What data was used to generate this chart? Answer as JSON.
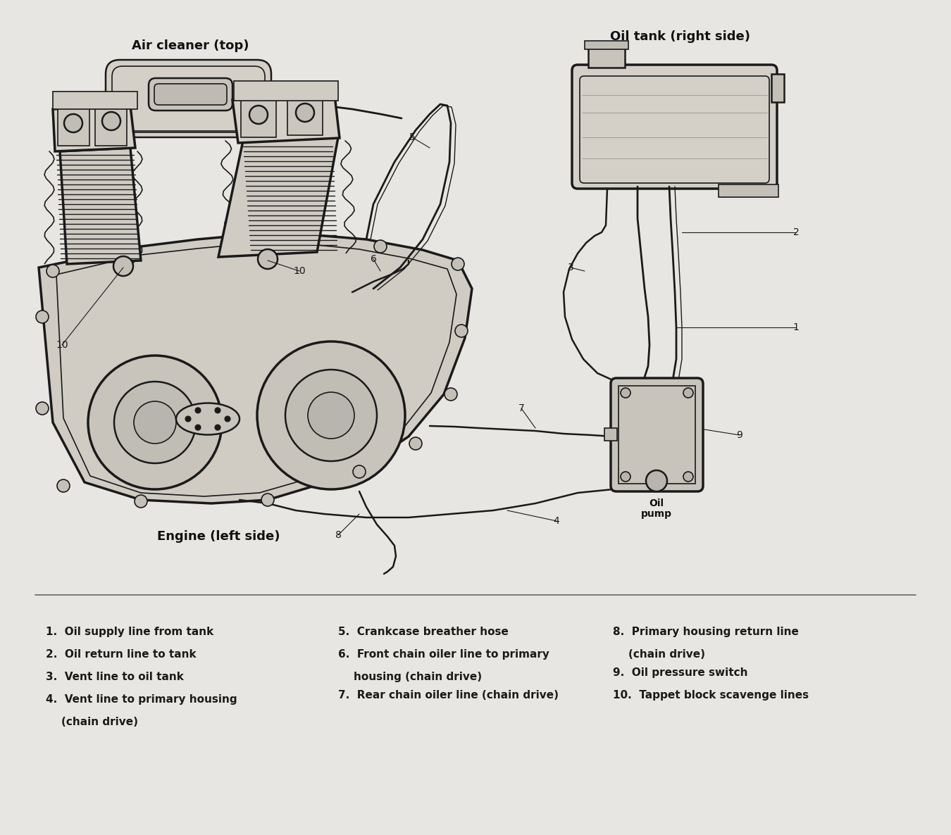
{
  "bg_color": "#e8e6e2",
  "line_color": "#1a1a1a",
  "label_color": "#111111",
  "labels": {
    "air_cleaner": "Air cleaner (top)",
    "oil_tank": "Oil tank (right side)",
    "engine": "Engine (left side)",
    "oil_pump_line1": "Oil",
    "oil_pump_line2": "pump"
  },
  "legend_col1": [
    "1.  Oil supply line from tank",
    "2.  Oil return line to tank",
    "3.  Vent line to oil tank",
    "4.  Vent line to primary housing\n    (chain drive)"
  ],
  "legend_col2": [
    "5.  Crankcase breather hose",
    "6.  Front chain oiler line to primary\n    housing (chain drive)",
    "7.  Rear chain oiler line (chain drive)"
  ],
  "legend_col3": [
    "8.  Primary housing return line\n    (chain drive)",
    "9.  Oil pressure switch",
    "10.  Tappet block scavenge lines"
  ]
}
